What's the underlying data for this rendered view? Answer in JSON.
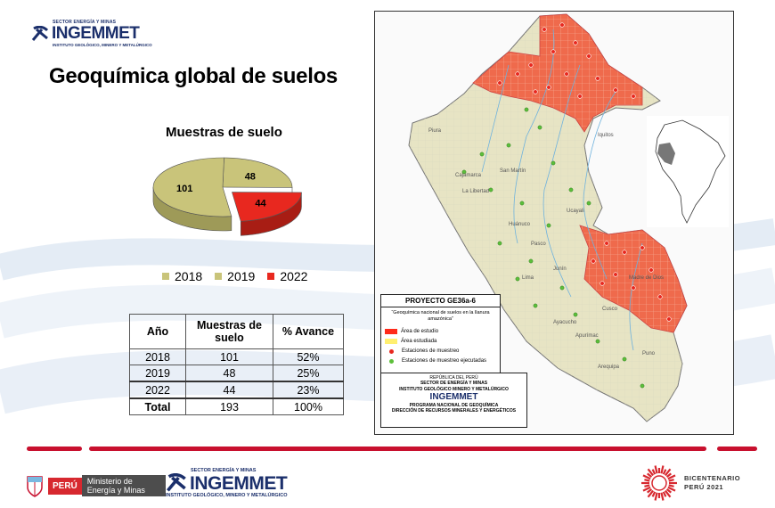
{
  "header": {
    "logo_small": "SECTOR ENERGÍA Y MINAS",
    "logo_big": "INGEMMET",
    "logo_sub": "INSTITUTO GEOLÓGICO, MINERO Y METALÚRGICO",
    "title": "Geoquímica global de suelos"
  },
  "chart_data": {
    "type": "pie",
    "title": "Muestras de suelo",
    "categories": [
      "2018",
      "2019",
      "2022"
    ],
    "values": [
      101,
      48,
      44
    ],
    "data_labels": [
      "101",
      "48",
      "44"
    ],
    "colors": [
      "#c9c47a",
      "#c9c47a",
      "#e8281f"
    ],
    "legend_position": "bottom",
    "exploded": [
      "2022"
    ],
    "three_d": true
  },
  "table": {
    "headers": [
      "Año",
      "Muestras de suelo",
      "% Avance"
    ],
    "rows": [
      [
        "2018",
        "101",
        "52%"
      ],
      [
        "2019",
        "48",
        "25%"
      ],
      [
        "2022",
        "44",
        "23%"
      ],
      [
        "Total",
        "193",
        "100%"
      ]
    ]
  },
  "map": {
    "labels": [
      "Iquitos",
      "Piura",
      "Cajamarca",
      "San Martín",
      "La Libertad",
      "Huánuco",
      "Pasco",
      "Lima",
      "Junín",
      "Ucayali",
      "Cusco",
      "Ayacucho",
      "Apurímac",
      "Arequipa",
      "Puno",
      "Madre de Dios"
    ],
    "legend": {
      "title": "PROYECTO GE36a-6",
      "subtitle": "“Geoquímica nacional de suelos en la llanura amazónica”",
      "items": [
        {
          "label": "Área de estudio",
          "color": "#ff2a1a"
        },
        {
          "label": "Área estudiada",
          "color": "#ffef70"
        },
        {
          "label": "Estaciones de muestreo",
          "color": "#e8281f"
        },
        {
          "label": "Estaciones de muestreo ejecutadas",
          "color": "#5cbf3a"
        }
      ]
    },
    "cartouche": {
      "line1": "REPÚBLICA DEL PERÚ",
      "line2": "SECTOR DE ENERGÍA Y MINAS",
      "line3": "INSTITUTO GEOLÓGICO MINERO Y METALÚRGICO",
      "logo": "INGEMMET",
      "line4": "PROGRAMA NACIONAL DE GEOQUÍMICA",
      "line5": "DIRECCIÓN DE RECURSOS MINERALES Y ENERGÉTICOS"
    }
  },
  "footer": {
    "peru": "PERÚ",
    "ministry": "Ministerio de Energía y Minas",
    "logo_small": "SECTOR ENERGÍA Y MINAS",
    "logo_big": "INGEMMET",
    "logo_sub": "INSTITUTO GEOLÓGICO, MINERO Y METALÚRGICO",
    "bicentenario_line1": "BICENTENARIO",
    "bicentenario_line2": "PERÚ 2021"
  },
  "colors": {
    "brand_blue": "#1b2f6b",
    "accent_red": "#c8102e",
    "pie_olive": "#c9c47a",
    "pie_red": "#e8281f"
  }
}
